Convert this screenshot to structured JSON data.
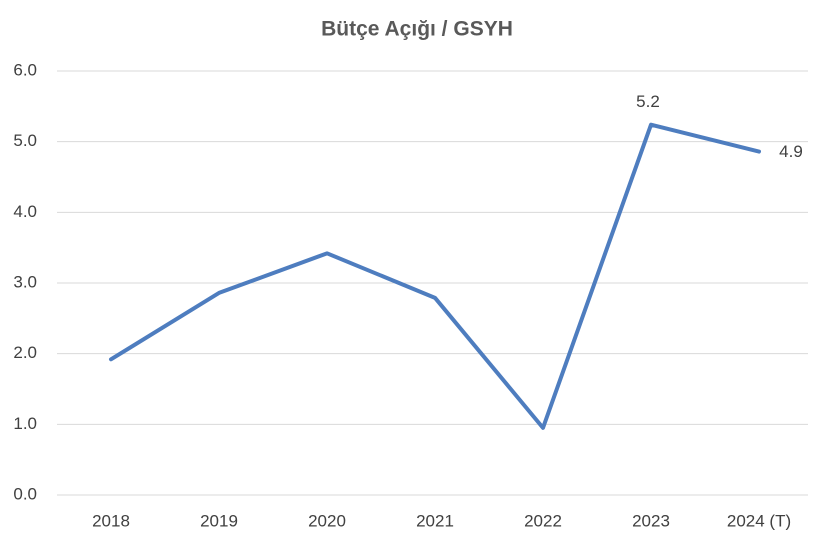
{
  "chart_data": {
    "type": "line",
    "title": "Bütçe Açığı / GSYH",
    "categories": [
      "2018",
      "2019",
      "2020",
      "2021",
      "2022",
      "2023",
      "2024 (T)"
    ],
    "series": [
      {
        "name": "Bütçe Açığı / GSYH",
        "color": "#4e7dbf",
        "values": [
          1.92,
          2.86,
          3.42,
          2.79,
          0.95,
          5.24,
          4.86
        ],
        "value_labels": [
          null,
          null,
          null,
          null,
          null,
          "5.2",
          "4.9"
        ]
      }
    ],
    "ylim": [
      0,
      6
    ],
    "yticks": [
      {
        "value": 0,
        "label": "0.0"
      },
      {
        "value": 1,
        "label": "1.0"
      },
      {
        "value": 2,
        "label": "2.0"
      },
      {
        "value": 3,
        "label": "3.0"
      },
      {
        "value": 4,
        "label": "4.0"
      },
      {
        "value": 5,
        "label": "5.0"
      },
      {
        "value": 6,
        "label": "6.0"
      }
    ],
    "grid": true
  }
}
